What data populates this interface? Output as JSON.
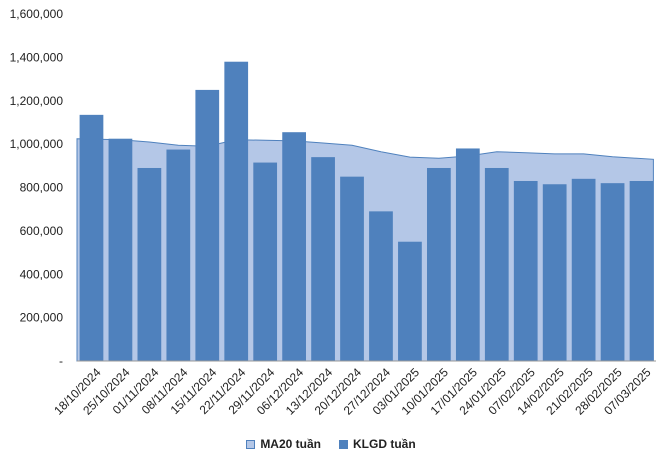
{
  "chart_data": {
    "type": "bar",
    "title": "",
    "xlabel": "",
    "ylabel": "",
    "ylim": [
      0,
      1600000
    ],
    "yticks": [
      "-",
      "200,000",
      "400,000",
      "600,000",
      "800,000",
      "1,000,000",
      "1,200,000",
      "1,400,000",
      "1,600,000"
    ],
    "categories": [
      "18/10/2024",
      "25/10/2024",
      "01/11/2024",
      "08/11/2024",
      "15/11/2024",
      "22/11/2024",
      "29/11/2024",
      "06/12/2024",
      "13/12/2024",
      "20/12/2024",
      "27/12/2024",
      "03/01/2025",
      "10/01/2025",
      "17/01/2025",
      "24/01/2025",
      "07/02/2025",
      "14/02/2025",
      "21/02/2025",
      "28/02/2025",
      "07/03/2025"
    ],
    "series": [
      {
        "name": "MA20 tuần",
        "type": "area",
        "color": "#b4c7e7",
        "line_color": "#4f81bd",
        "values": [
          1025000,
          1020000,
          1010000,
          995000,
          990000,
          1020000,
          1018000,
          1015000,
          1005000,
          995000,
          965000,
          940000,
          935000,
          945000,
          965000,
          960000,
          955000,
          955000,
          942000,
          930000
        ]
      },
      {
        "name": "KLGD tuần",
        "type": "bar",
        "color": "#4f81bd",
        "values": [
          1135000,
          1025000,
          890000,
          975000,
          1250000,
          1380000,
          915000,
          1055000,
          940000,
          850000,
          690000,
          550000,
          890000,
          980000,
          890000,
          830000,
          815000,
          840000,
          820000,
          830000
        ]
      }
    ],
    "legend_position": "bottom",
    "grid": false
  }
}
